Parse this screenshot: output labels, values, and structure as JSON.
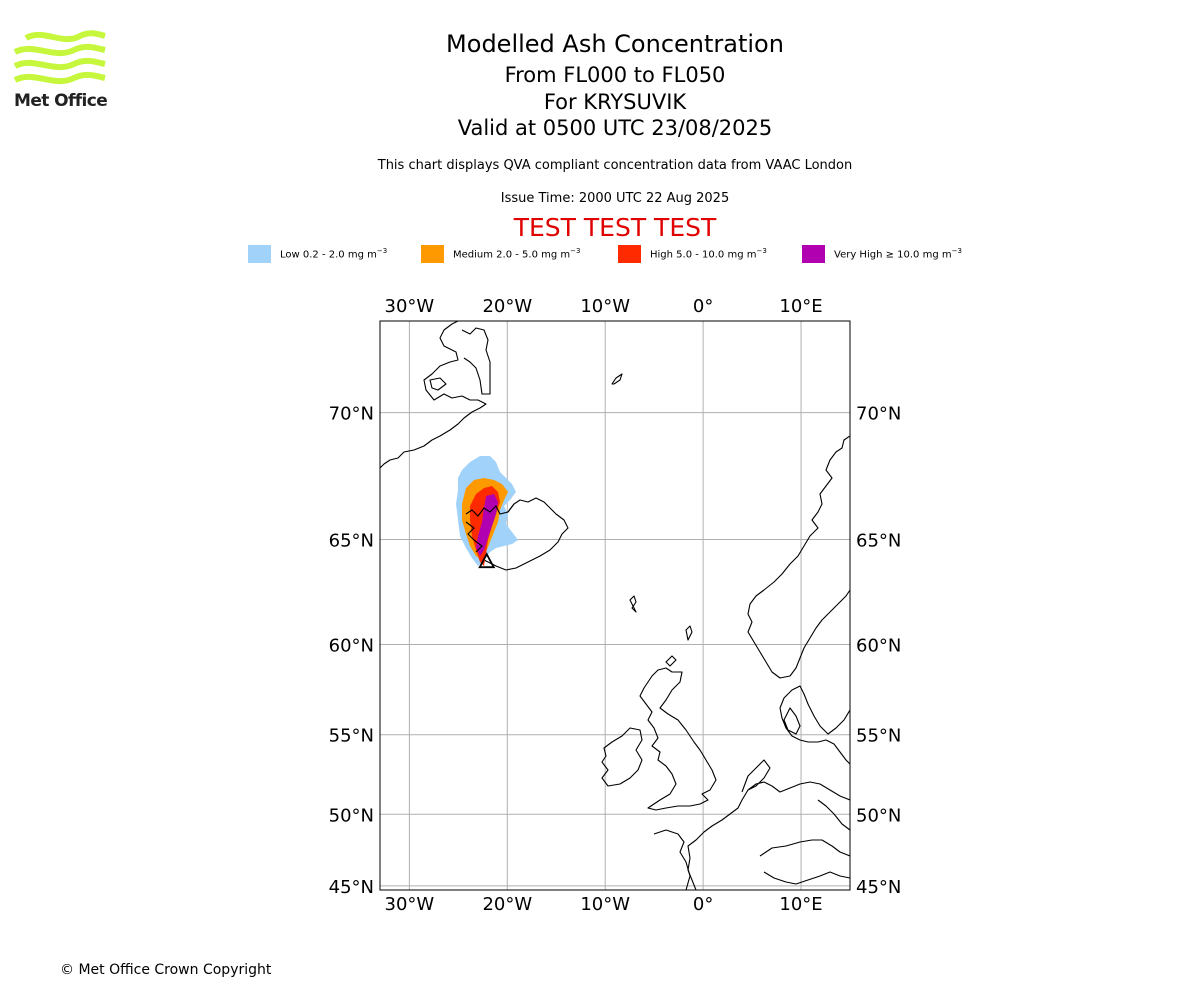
{
  "branding": {
    "logo_text": "Met Office",
    "logo_color": "#c6f73d",
    "copyright": "© Met Office Crown Copyright"
  },
  "header": {
    "title": "Modelled Ash Concentration",
    "levels": "From FL000 to FL050",
    "volcano": "For KRYSUVIK",
    "valid": "Valid at 0500 UTC 23/08/2025",
    "disclaimer": "This chart displays QVA compliant concentration data from VAAC London",
    "issue_time": "Issue Time: 2000 UTC 22 Aug 2025",
    "test_banner": "TEST TEST TEST",
    "test_banner_color": "#e00000"
  },
  "legend": [
    {
      "label": "Low 0.2 - 2.0 mg m",
      "unit_exp": "−3",
      "color": "#a0d2fa"
    },
    {
      "label": "Medium 2.0 - 5.0 mg m",
      "unit_exp": "−3",
      "color": "#ff9900"
    },
    {
      "label": "High 5.0 - 10.0 mg m",
      "unit_exp": "−3",
      "color": "#ff2a00"
    },
    {
      "label": "Very High  ≥  10.0 mg m",
      "unit_exp": "−3",
      "color": "#b000b0"
    }
  ],
  "map": {
    "lon_range": [
      -33,
      15
    ],
    "lat_range": [
      44.7,
      73
    ],
    "gridlines": true,
    "lon_ticks": [
      {
        "value": -30,
        "label": "30°W"
      },
      {
        "value": -20,
        "label": "20°W"
      },
      {
        "value": -10,
        "label": "10°W"
      },
      {
        "value": 0,
        "label": "0°"
      },
      {
        "value": 10,
        "label": "10°E"
      }
    ],
    "lat_ticks": [
      {
        "value": 70,
        "label": "70°N"
      },
      {
        "value": 65,
        "label": "65°N"
      },
      {
        "value": 60,
        "label": "60°N"
      },
      {
        "value": 55,
        "label": "55°N"
      },
      {
        "value": 50,
        "label": "50°N"
      },
      {
        "value": 45,
        "label": "45°N"
      }
    ],
    "volcano_location": {
      "lon": -22.1,
      "lat": 63.9
    }
  }
}
